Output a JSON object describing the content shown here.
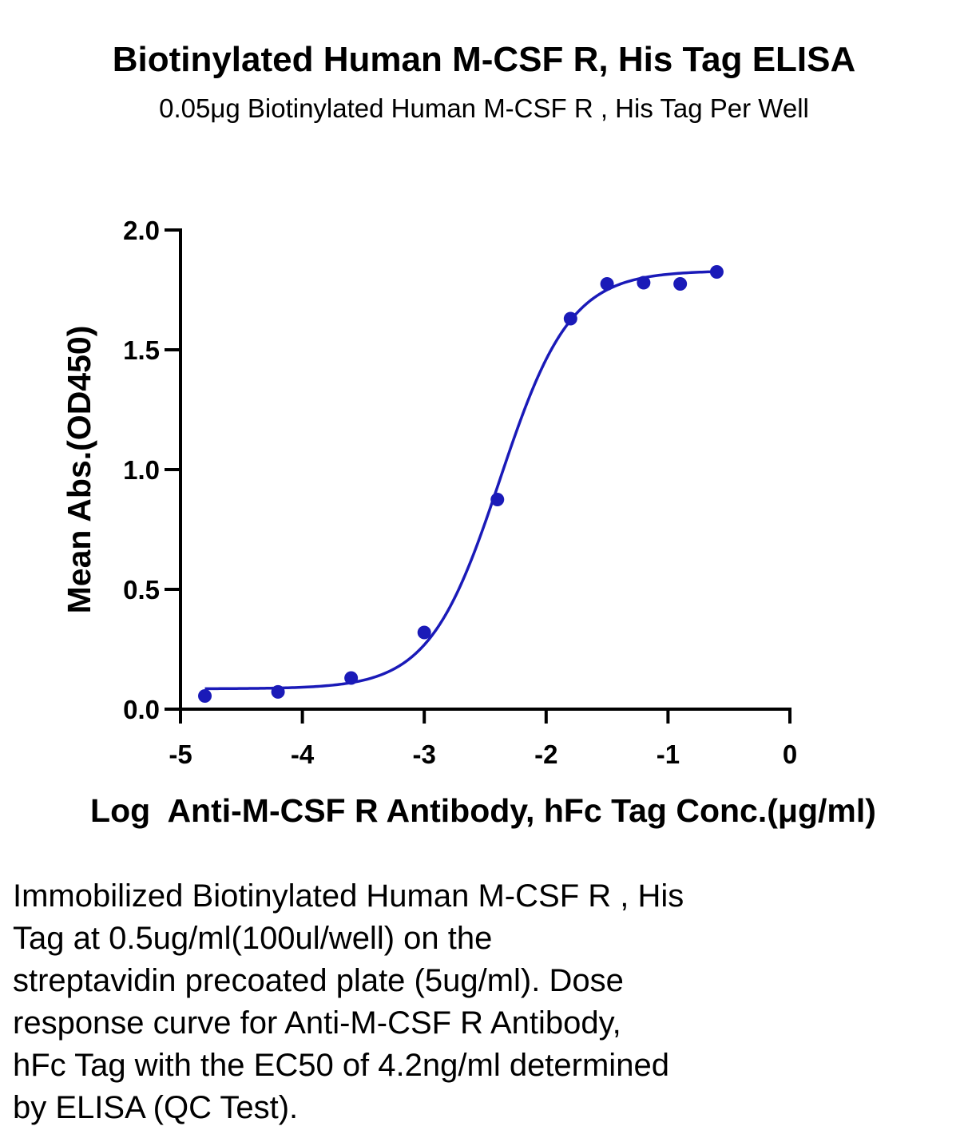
{
  "chart_data": {
    "type": "scatter",
    "title": "Biotinylated Human M-CSF R, His Tag ELISA",
    "subtitle": "0.05μg Biotinylated Human M-CSF R , His Tag Per Well",
    "xlabel": "Log  Anti-M-CSF R Antibody, hFc Tag Conc.(μg/ml)",
    "ylabel": "Mean Abs.(OD450)",
    "xlim": [
      -5,
      0
    ],
    "ylim": [
      0,
      2.0
    ],
    "xticks": [
      "-5",
      "-4",
      "-3",
      "-2",
      "-1",
      "0"
    ],
    "yticks": [
      "0.0",
      "0.5",
      "1.0",
      "1.5",
      "2.0"
    ],
    "grid": false,
    "color": "#1a1ab8",
    "series": [
      {
        "points": [
          {
            "x": -4.8,
            "y": 0.055
          },
          {
            "x": -4.2,
            "y": 0.072
          },
          {
            "x": -3.6,
            "y": 0.13
          },
          {
            "x": -3.0,
            "y": 0.32
          },
          {
            "x": -2.4,
            "y": 0.875
          },
          {
            "x": -1.8,
            "y": 1.63
          },
          {
            "x": -1.5,
            "y": 1.775
          },
          {
            "x": -1.2,
            "y": 1.78
          },
          {
            "x": -0.9,
            "y": 1.775
          },
          {
            "x": -0.6,
            "y": 1.825
          }
        ],
        "fit": {
          "bottom": 0.085,
          "top": 1.83,
          "logEC50": -2.38,
          "hill": 1.5
        }
      }
    ]
  },
  "caption": [
    "Immobilized Biotinylated Human M-CSF R , His",
    "Tag at 0.5ug/ml(100ul/well) on the",
    "streptavidin precoated plate (5ug/ml). Dose",
    "response curve for Anti-M-CSF R Antibody,",
    "hFc Tag with the EC50 of 4.2ng/ml determined",
    "by ELISA (QC Test)."
  ]
}
